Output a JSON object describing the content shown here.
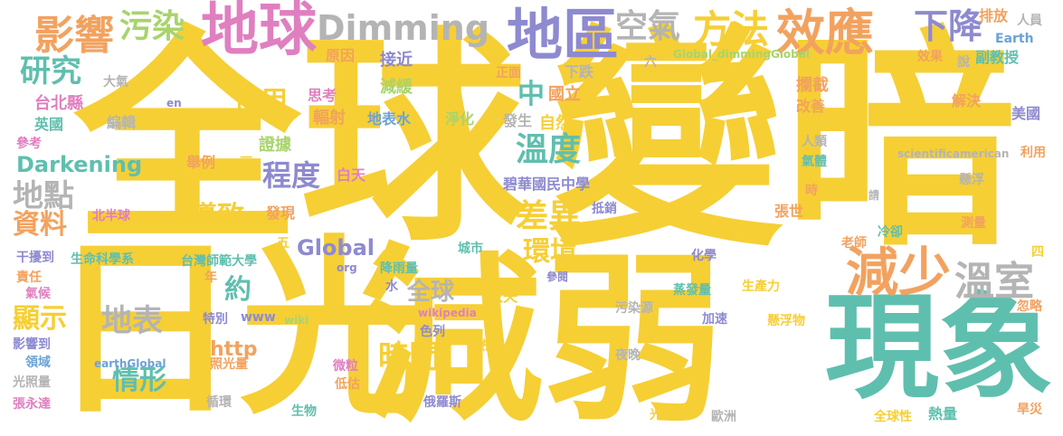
{
  "palette": {
    "yellow": "#F6CF35",
    "green": "#72C59A",
    "purple": "#8E8AD0",
    "pink": "#E07FC0",
    "orange": "#F2A25F",
    "gray": "#B4B4B4",
    "lime": "#A8D46C",
    "blue": "#6BA3D6",
    "teal": "#5FBFAE"
  },
  "words": {
    "w_quanqiu": "全球",
    "w_bianan": "變暗",
    "w_riguang": "日光",
    "w_jianruo": "減弱",
    "w_xianxiang": "現象",
    "w_diqiu": "地球",
    "w_diqu": "地區",
    "w_xiaoying": "效應",
    "w_dimming": "Dimming",
    "w_yingxiang": "影響",
    "w_wuran": "污染",
    "w_fangfa": "方法",
    "w_xiajiang": "下降",
    "w_kongqi": "空氣",
    "w_jianshao": "減少",
    "w_wenshi": "溫室",
    "w_yanjiu": "研究",
    "w_wendu": "溫度",
    "w_chayi": "差異",
    "w_chengdu": "程度",
    "w_dian": "地點",
    "w_daozhi": "導致",
    "w_global": "Global",
    "w_huanjing": "環境",
    "w_darkening": "Darkening",
    "w_quanqiu2": "全球",
    "w_shijian": "時間",
    "w_qingxing": "情形",
    "w_dibiao": "地表",
    "w_xianshi": "顯示",
    "w_ziliao": "資料",
    "w_zuoyong": "作用",
    "w_yue": "約",
    "w_http": "http",
    "w_zhong": "中",
    "w_guoli": "國立",
    "w_taibei": "台北縣",
    "w_yuanyin": "原因",
    "w_jiejin": "接近",
    "w_jianhuan": "減緩",
    "w_zhengmian": "正面",
    "w_xiadie": "下跌",
    "w_six": "六",
    "w_dimmingglobal": "Global_dimmingGlobal",
    "w_paifang": "排放",
    "w_renyuan": "人員",
    "w_earth": "Earth",
    "w_xiaoguo": "效果",
    "w_shuo": "說",
    "w_fujiaoshou": "副教授",
    "w_daqi": "大氣",
    "w_en": "en",
    "w_sikao": "思考",
    "w_fushe": "輻射",
    "w_dibiaoshui": "地表水",
    "w_jinghua": "淨化",
    "w_fasheng": "發生",
    "w_ziran": "自然",
    "w_lanjie": "攔截",
    "w_gaishan": "改善",
    "w_jiejue": "解決",
    "w_meiguo": "美國",
    "w_yingguo": "英國",
    "w_bianji": "編輯",
    "w_cankao": "參考",
    "w_zhengju": "證據",
    "w_renlei": "人類",
    "w_qiti": "氣體",
    "w_sciam": "scientificamerican",
    "w_liyong": "利用",
    "w_juli": "舉例",
    "w_san": "三",
    "w_baitian": "白天",
    "w_bihua": "碧華國民中學",
    "w_shi": "時",
    "w_xuanfu": "懸浮",
    "w_qing": "請",
    "w_beibanqiu": "北半球",
    "w_faxian": "發現",
    "w_dixiao": "抵銷",
    "w_zhangshi": "張世",
    "w_celiang": "測量",
    "w_wu": "五",
    "w_laoshi": "老師",
    "w_lengque": "冷卻",
    "w_chengshi": "城市",
    "w_ganrao": "干擾到",
    "w_shengming": "生命科學系",
    "w_shida": "台灣師範大學",
    "w_org": "org",
    "w_jiangyu": "降雨量",
    "w_huaxue": "化學",
    "w_si": "四",
    "w_zeren": "責任",
    "w_nian": "年",
    "w_shui": "水",
    "w_sanshi": "散失",
    "w_canyue": "參閱",
    "w_zhengfa": "蒸發量",
    "w_shengchan": "生產力",
    "w_hulue": "忽略",
    "w_qihou": "氣候",
    "w_tebie": "特別",
    "w_www": "www",
    "w_wiki": "wiki",
    "w_yunceng": "雲層",
    "w_wikipedia": "wikipedia",
    "w_wuranyuan": "污染源",
    "w_jiasu": "加速",
    "w_xuanfuwu": "懸浮物",
    "w_yingxiangdao": "影響到",
    "w_selie": "色列",
    "w_re": "熱",
    "w_lingyu": "領域",
    "w_earthglobal": "earthGlobal",
    "w_zhaoguang": "照光量",
    "w_weili": "微粒",
    "w_yewan": "夜晚",
    "w_guangzhao": "光照量",
    "w_digu": "低估",
    "w_zhang": "張永達",
    "w_xunhuan": "循環",
    "w_eluosi": "俄羅斯",
    "w_shengwu": "生物",
    "w_guanghe": "光合",
    "w_ouzhou": "歐洲",
    "w_quanqiuxing": "全球性",
    "w_reliang": "熱量",
    "w_hanzai": "旱災"
  }
}
